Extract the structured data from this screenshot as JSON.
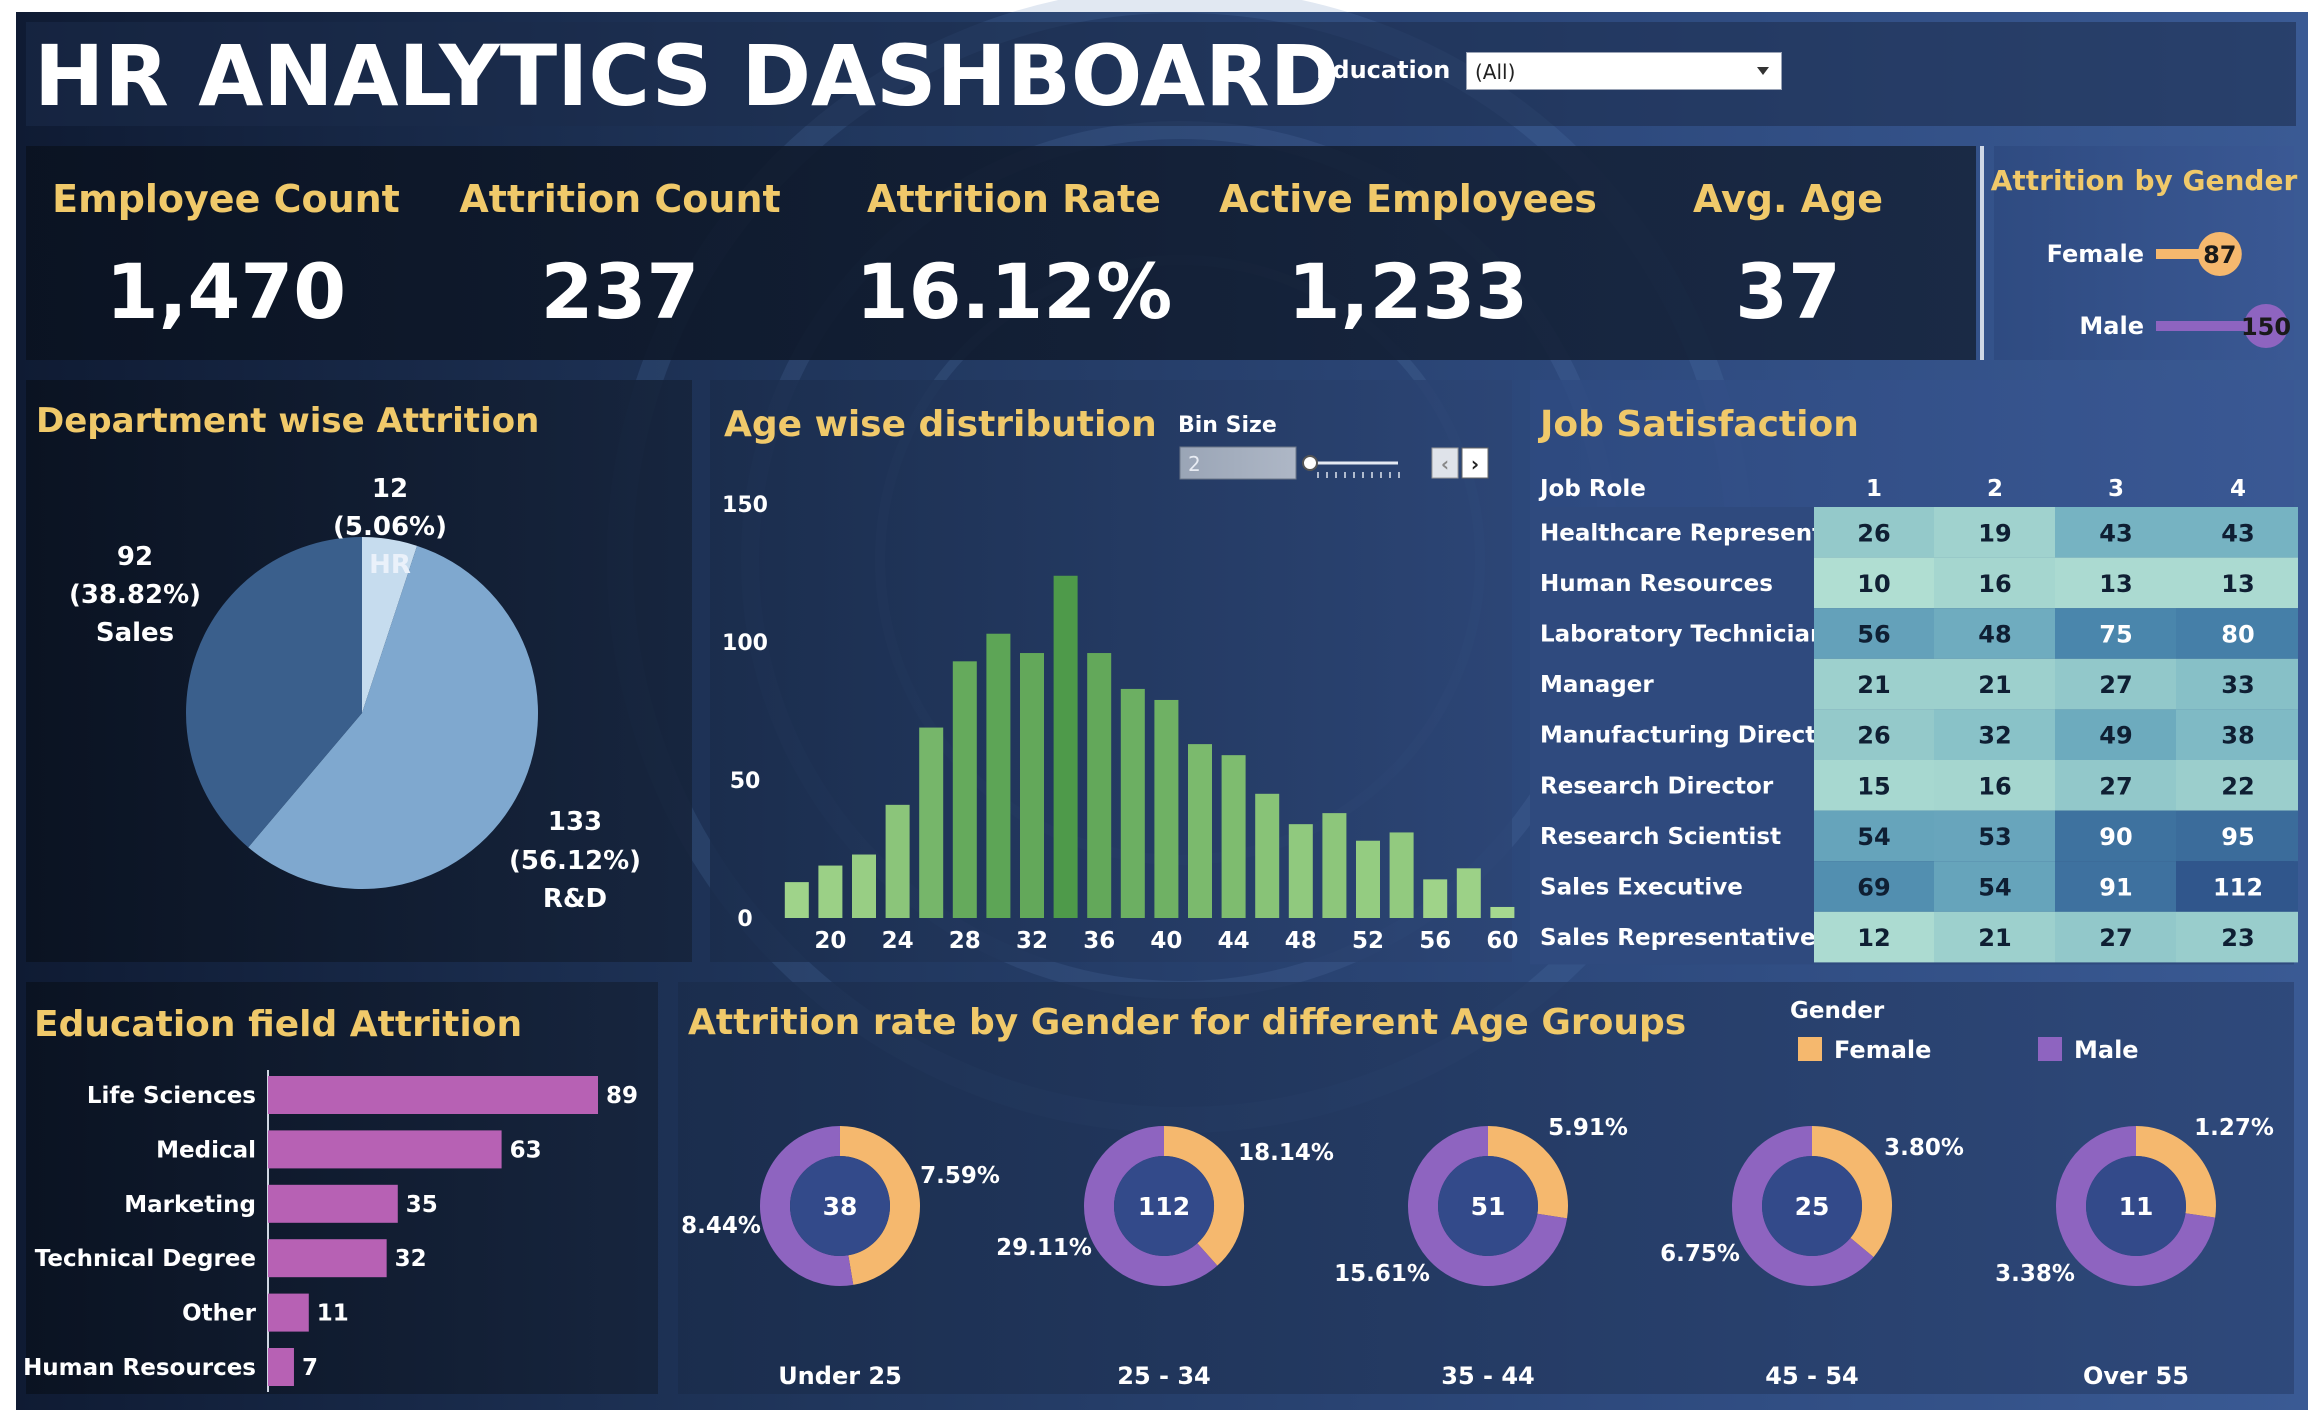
{
  "header": {
    "title": "HR ANALYTICS DASHBOARD",
    "filter_label": "Education",
    "filter_value": "(All)"
  },
  "kpis": [
    {
      "label": "Employee Count",
      "value": "1,470"
    },
    {
      "label": "Attrition Count",
      "value": "237"
    },
    {
      "label": "Attrition Rate",
      "value": "16.12%"
    },
    {
      "label": "Active Employees",
      "value": "1,233"
    },
    {
      "label": "Avg. Age",
      "value": "37"
    }
  ],
  "colors": {
    "accent": "#f0c96a",
    "female": "#f5b86e",
    "male": "#8e64c0",
    "donut_center": "#334a8a",
    "pie_sales": "#3a5f8c",
    "pie_rd": "#7fa8cf",
    "pie_hr": "#c6dcee",
    "bar_green_dark": "#4e9a4a",
    "bar_green_light": "#a6d88f",
    "edu_bar": "#b761b4"
  },
  "gender_panel": {
    "title": "Attrition by Gender",
    "items": [
      {
        "label": "Female",
        "value": 87
      },
      {
        "label": "Male",
        "value": 150
      }
    ]
  },
  "chart_data": [
    {
      "id": "department",
      "type": "pie",
      "title": "Department wise Attrition",
      "slices": [
        {
          "name": "HR",
          "value": 12,
          "pct": "(5.06%)"
        },
        {
          "name": "R&D",
          "value": 133,
          "pct": "(56.12%)"
        },
        {
          "name": "Sales",
          "value": 92,
          "pct": "(38.82%)"
        }
      ]
    },
    {
      "id": "age",
      "type": "bar",
      "title": "Age wise distribution",
      "control": {
        "label": "Bin Size",
        "value": "2"
      },
      "x": [
        18,
        20,
        22,
        24,
        26,
        28,
        30,
        32,
        34,
        36,
        38,
        40,
        42,
        44,
        46,
        48,
        50,
        52,
        54,
        56,
        58,
        60
      ],
      "xticks": [
        20,
        24,
        28,
        32,
        36,
        40,
        44,
        48,
        52,
        56,
        60
      ],
      "values": [
        13,
        19,
        23,
        41,
        69,
        93,
        103,
        96,
        124,
        96,
        83,
        79,
        63,
        59,
        45,
        34,
        38,
        28,
        31,
        14,
        18,
        4
      ],
      "yticks": [
        0,
        50,
        100,
        150
      ],
      "ylim": [
        0,
        160
      ]
    },
    {
      "id": "job",
      "type": "table",
      "title": "Job Satisfaction",
      "header": [
        "Job Role",
        "1",
        "2",
        "3",
        "4"
      ],
      "rows": [
        {
          "role": "Healthcare Represent..",
          "values": [
            26,
            19,
            43,
            43
          ]
        },
        {
          "role": "Human Resources",
          "values": [
            10,
            16,
            13,
            13
          ]
        },
        {
          "role": "Laboratory Technician",
          "values": [
            56,
            48,
            75,
            80
          ]
        },
        {
          "role": "Manager",
          "values": [
            21,
            21,
            27,
            33
          ]
        },
        {
          "role": "Manufacturing Director",
          "values": [
            26,
            32,
            49,
            38
          ]
        },
        {
          "role": "Research Director",
          "values": [
            15,
            16,
            27,
            22
          ]
        },
        {
          "role": "Research Scientist",
          "values": [
            54,
            53,
            90,
            95
          ]
        },
        {
          "role": "Sales Executive",
          "values": [
            69,
            54,
            91,
            112
          ]
        },
        {
          "role": "Sales Representative",
          "values": [
            12,
            21,
            27,
            23
          ]
        }
      ]
    },
    {
      "id": "edu",
      "type": "bar",
      "title": "Education field Attrition",
      "categories": [
        "Life Sciences",
        "Medical",
        "Marketing",
        "Technical Degree",
        "Other",
        "Human Resources"
      ],
      "values": [
        89,
        63,
        35,
        32,
        11,
        7
      ],
      "xlim": [
        0,
        100
      ]
    },
    {
      "id": "agegroup",
      "type": "pie",
      "title": "Attrition rate by Gender for different Age Groups",
      "legend_title": "Gender",
      "legend": [
        "Female",
        "Male"
      ],
      "groups": [
        {
          "label": "Under 25",
          "total": "38",
          "female": "7.59%",
          "male": "8.44%",
          "female_val": 7.59,
          "male_val": 8.44
        },
        {
          "label": "25 - 34",
          "total": "112",
          "female": "18.14%",
          "male": "29.11%",
          "female_val": 18.14,
          "male_val": 29.11
        },
        {
          "label": "35 - 44",
          "total": "51",
          "female": "5.91%",
          "male": "15.61%",
          "female_val": 5.91,
          "male_val": 15.61
        },
        {
          "label": "45 - 54",
          "total": "25",
          "female": "3.80%",
          "male": "6.75%",
          "female_val": 3.8,
          "male_val": 6.75
        },
        {
          "label": "Over 55",
          "total": "11",
          "female": "1.27%",
          "male": "3.38%",
          "female_val": 1.27,
          "male_val": 3.38
        }
      ]
    }
  ]
}
